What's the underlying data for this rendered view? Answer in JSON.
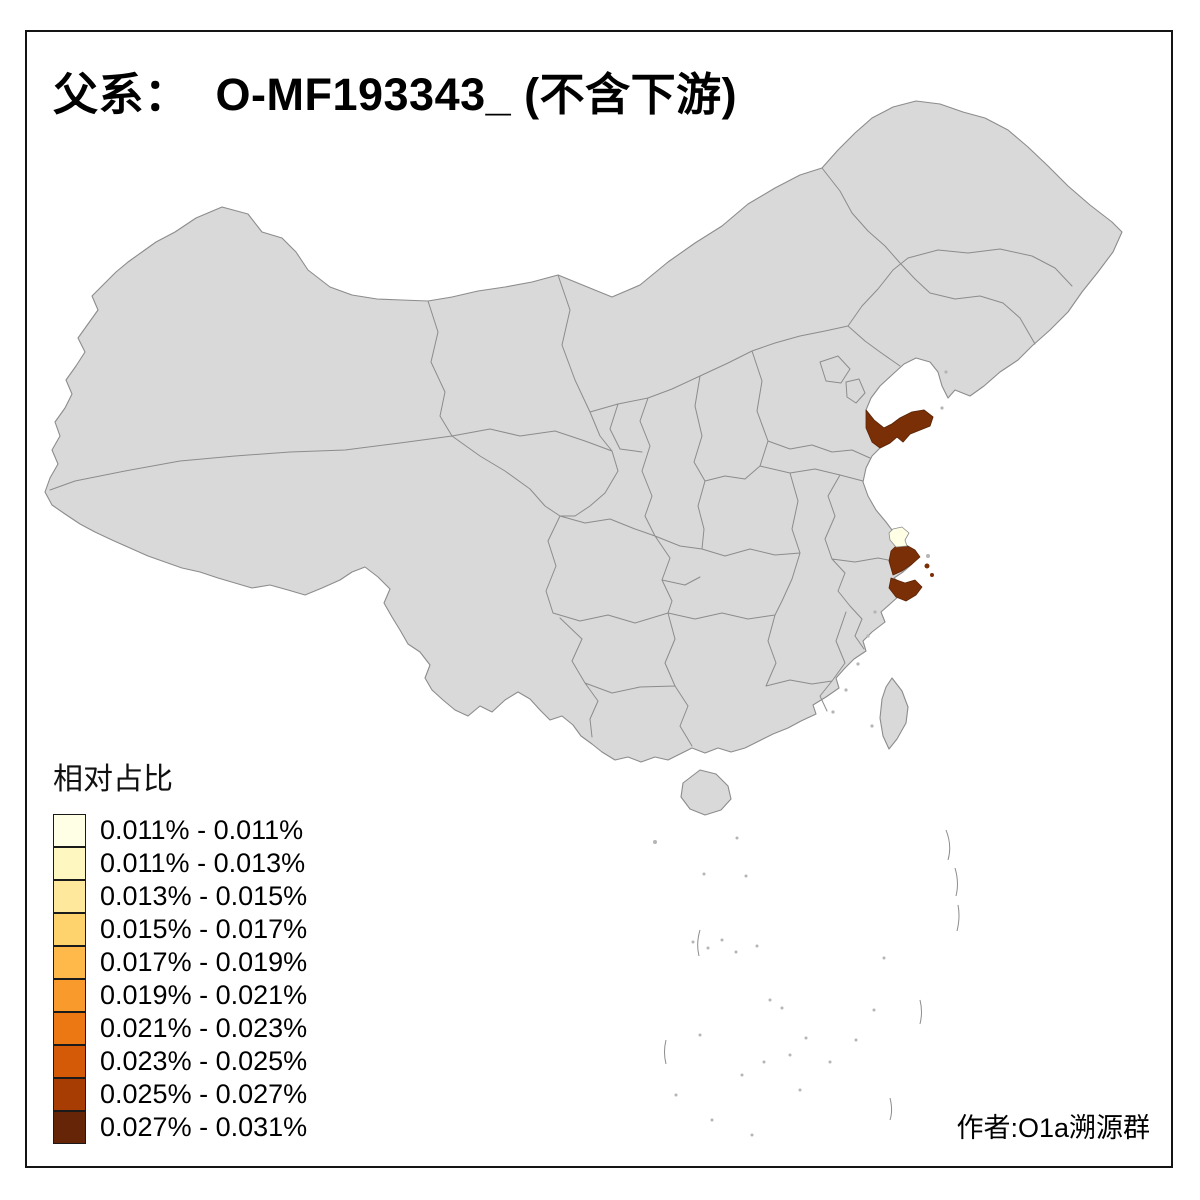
{
  "page": {
    "title": "父系：  O-MF193343_ (不含下游)",
    "credit": "作者:O1a溯源群"
  },
  "legend": {
    "title": "相对占比",
    "entries": [
      {
        "label": "0.011% - 0.011%",
        "color": "#FFFFE5"
      },
      {
        "label": "0.011% - 0.013%",
        "color": "#FFF7C0"
      },
      {
        "label": "0.013% - 0.015%",
        "color": "#FEE89B"
      },
      {
        "label": "0.015% - 0.017%",
        "color": "#FED36D"
      },
      {
        "label": "0.017% - 0.019%",
        "color": "#FEB94A"
      },
      {
        "label": "0.019% - 0.021%",
        "color": "#F99B2C"
      },
      {
        "label": "0.021% - 0.023%",
        "color": "#EC7814"
      },
      {
        "label": "0.023% - 0.025%",
        "color": "#D55A08"
      },
      {
        "label": "0.025% - 0.027%",
        "color": "#A83D03"
      },
      {
        "label": "0.027% - 0.031%",
        "color": "#662506"
      }
    ]
  },
  "map": {
    "land_color": "#d9d9d9",
    "border_color": "#8c8c8c",
    "sea_color": "#ffffff",
    "highlights": [
      {
        "name": "jiaodong-peninsula-shandong",
        "value_range": "0.027% - 0.031%",
        "color": "#7B2F06"
      },
      {
        "name": "shanghai-ningbo-coast",
        "value_range": "0.027% - 0.031%",
        "color": "#7B2F06"
      },
      {
        "name": "yangtze-mouth-city",
        "value_range": "0.011% - 0.011%",
        "color": "#FFFFE5"
      }
    ]
  }
}
